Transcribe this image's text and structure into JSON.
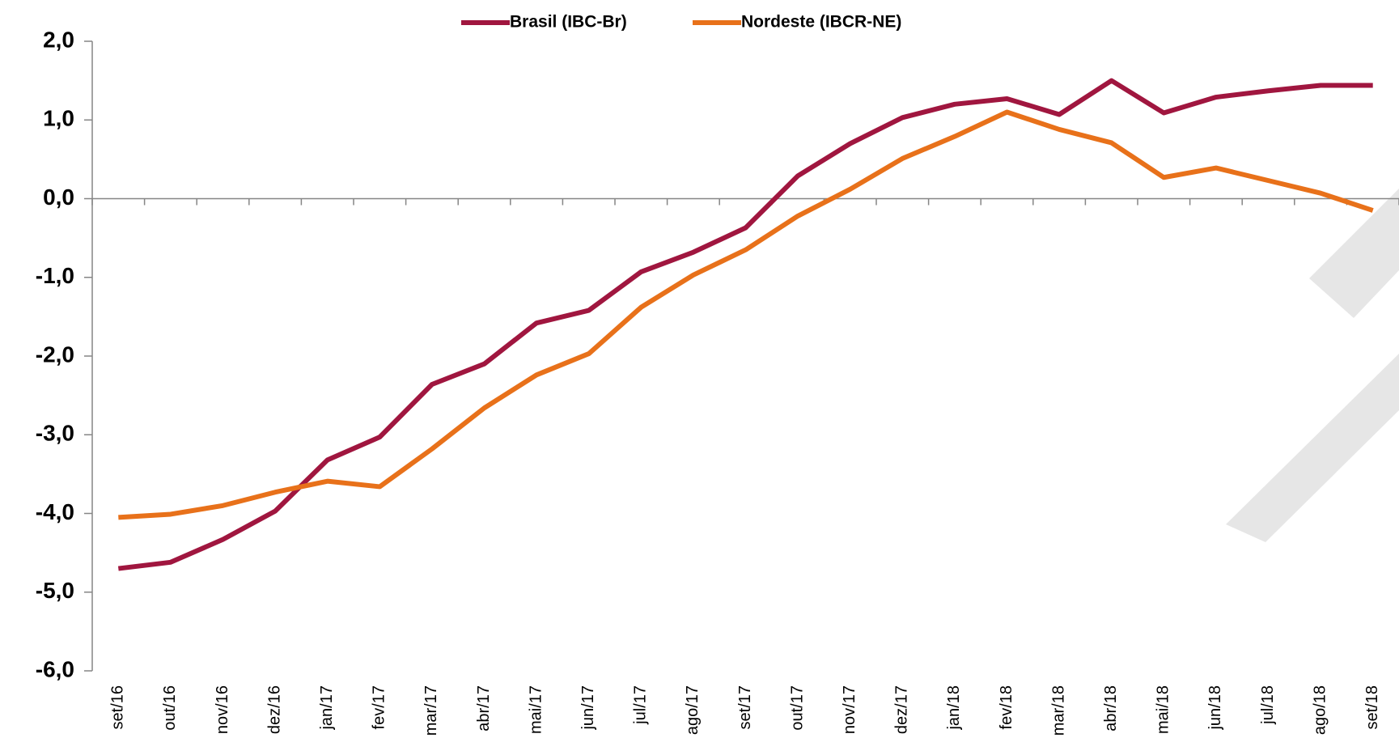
{
  "chart_data": {
    "type": "line",
    "categories": [
      "set/16",
      "out/16",
      "nov/16",
      "dez/16",
      "jan/17",
      "fev/17",
      "mar/17",
      "abr/17",
      "mai/17",
      "jun/17",
      "jul/17",
      "ago/17",
      "set/17",
      "out/17",
      "nov/17",
      "dez/17",
      "jan/18",
      "fev/18",
      "mar/18",
      "abr/18",
      "mai/18",
      "jun/18",
      "jul/18",
      "ago/18",
      "set/18"
    ],
    "series": [
      {
        "name": "Brasil (IBC-Br)",
        "color": "#a0163f",
        "values": [
          -4.7,
          -4.62,
          -4.33,
          -3.97,
          -3.32,
          -3.03,
          -2.36,
          -2.1,
          -1.58,
          -1.42,
          -0.93,
          -0.68,
          -0.37,
          0.29,
          0.7,
          1.03,
          1.2,
          1.27,
          1.07,
          1.5,
          1.09,
          1.29,
          1.37,
          1.44,
          1.44
        ]
      },
      {
        "name": "Nordeste (IBCR-NE)",
        "color": "#e8711a",
        "values": [
          -4.05,
          -4.01,
          -3.9,
          -3.73,
          -3.59,
          -3.66,
          -3.18,
          -2.66,
          -2.24,
          -1.97,
          -1.38,
          -0.97,
          -0.65,
          -0.22,
          0.12,
          0.51,
          0.79,
          1.1,
          0.88,
          0.71,
          0.27,
          0.39,
          0.23,
          0.07,
          -0.15
        ]
      }
    ],
    "ylim": [
      -6,
      2
    ],
    "yticks": [
      {
        "value": 2,
        "label": "2,0"
      },
      {
        "value": 1,
        "label": "1,0"
      },
      {
        "value": 0,
        "label": "0,0"
      },
      {
        "value": -1,
        "label": "-1,0"
      },
      {
        "value": -2,
        "label": "-2,0"
      },
      {
        "value": -3,
        "label": "-3,0"
      },
      {
        "value": -4,
        "label": "-4,0"
      },
      {
        "value": -5,
        "label": "-5,0"
      },
      {
        "value": -6,
        "label": "-6,0"
      }
    ],
    "legend": "top"
  }
}
